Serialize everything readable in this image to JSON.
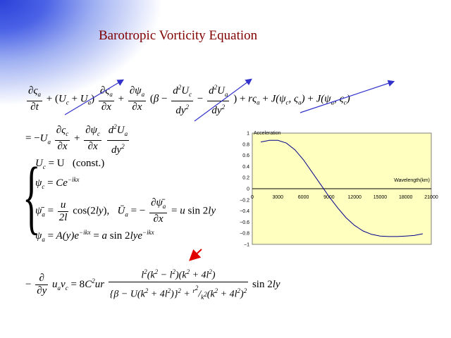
{
  "title": "Barotropic Vorticity Equation",
  "equations": {
    "vorticity": "∂ς_a/∂t + (U_c + U_a) ∂ς_a/∂x + ∂ψ_a/∂x (β − d²U_c/dy² − d²U_a/dy²) + r ς_a + J(ψ_c, ς_a) + J(ψ_a, ς_c)",
    "rhs": "= −U_a ∂ς_c/∂x + ∂ψ_c/∂x d²U_a/dy²",
    "uc": "U_c = U",
    "uc_note": "(const.)",
    "psic": "ψ_c = Ce^(−ikx)",
    "psia_bar": "ψ_a = (u/2l) cos(2ly),",
    "ua_bar": "U_a = −∂ψ_a/∂x = u sin 2ly",
    "psia": "ψ_a = A(y)e^(−ikx) = a sin 2lye^(−ikx)",
    "flux": "−∂/∂y (u_a v_c) = 8C²ur · l²(k² − l²)(k² + 4l²) / ( {β − U(k² + 4l²)}² + (r²/k²)(k² + 4l²)² ) · sin 2ly"
  },
  "chart_data": {
    "type": "line",
    "title": "Acceleration",
    "xlabel": "Wavelength(km)",
    "ylabel": "",
    "x_ticks": [
      "0",
      "3000",
      "6000",
      "9000",
      "12000",
      "15000",
      "18000",
      "21000"
    ],
    "y_ticks": [
      "1",
      "0.8",
      "0.6",
      "0.4",
      "0.2",
      "0",
      "−0.2",
      "−0.4",
      "−0.6",
      "−0.8",
      "−1"
    ],
    "xlim": [
      0,
      21000
    ],
    "ylim": [
      -1,
      1
    ],
    "background": "#ffffc0",
    "line_color": "#00008b",
    "series": [
      {
        "x": [
          1000,
          2000,
          3000,
          4000,
          5000,
          6000,
          7000,
          8000,
          9000,
          10000,
          11000,
          12000,
          13000,
          14000,
          15000,
          16000,
          17000,
          18000,
          19000,
          20000
        ],
        "y": [
          0.84,
          0.87,
          0.87,
          0.82,
          0.7,
          0.52,
          0.3,
          0.08,
          -0.14,
          -0.34,
          -0.52,
          -0.66,
          -0.76,
          -0.82,
          -0.85,
          -0.86,
          -0.86,
          -0.85,
          -0.84,
          -0.81
        ]
      }
    ]
  },
  "annotation_colors": {
    "arrow": "#3333cc",
    "pointer": "#e00000"
  }
}
